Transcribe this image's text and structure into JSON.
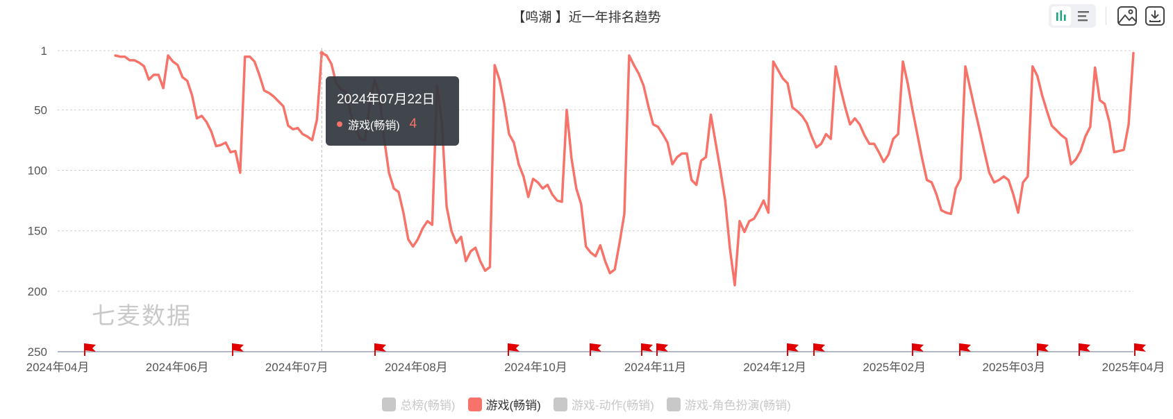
{
  "title": "【鸣潮 】近一年排名趋势",
  "watermark": "七麦数据",
  "colors": {
    "series": "#f77369",
    "grid": "#cfcfcf",
    "axis": "#9aa0b3",
    "flag": "#e00000",
    "legend_off": "#c8c8c8",
    "accent": "#1aa57e"
  },
  "toolbar": {
    "toggle": [
      {
        "icon": "bar-chart-icon",
        "active": true
      },
      {
        "icon": "list-icon",
        "active": false
      }
    ],
    "buttons": [
      {
        "icon": "image-icon"
      },
      {
        "icon": "download-icon"
      }
    ]
  },
  "tooltip": {
    "date": "2024年07月22日",
    "series": "游戏(畅销)",
    "value": "4"
  },
  "legend": [
    {
      "label": "总榜(畅销)",
      "active": false
    },
    {
      "label": "游戏(畅销)",
      "active": true
    },
    {
      "label": "游戏-动作(畅销)",
      "active": false
    },
    {
      "label": "游戏-角色扮演(畅销)",
      "active": false
    }
  ],
  "chart_data": {
    "type": "line",
    "title": "【鸣潮 】近一年排名趋势",
    "y_axis": {
      "inverse": true,
      "min": 1,
      "max": 250,
      "ticks": [
        1,
        50,
        100,
        150,
        200,
        250
      ]
    },
    "x_ticks": [
      "2024年04月",
      "2024年06月",
      "2024年07月",
      "2024年08月",
      "2024年10月",
      "2024年11月",
      "2024年12月",
      "2025年02月",
      "2025年03月",
      "2025年04月"
    ],
    "grid": true,
    "legend_position": "bottom",
    "series": [
      {
        "name": "游戏(畅销)",
        "values": [
          null,
          null,
          null,
          null,
          null,
          null,
          null,
          null,
          null,
          null,
          null,
          null,
          5,
          6,
          6,
          9,
          9,
          11,
          14,
          25,
          21,
          21,
          32,
          5,
          10,
          13,
          23,
          26,
          38,
          57,
          55,
          60,
          68,
          80,
          79,
          77,
          85,
          84,
          102,
          6,
          6,
          10,
          21,
          34,
          36,
          39,
          43,
          47,
          63,
          66,
          65,
          70,
          72,
          75,
          58,
          3,
          5,
          12,
          28,
          33,
          35,
          53,
          65,
          74,
          75,
          45,
          25,
          38,
          74,
          102,
          115,
          118,
          135,
          157,
          163,
          157,
          148,
          142,
          145,
          30,
          60,
          130,
          150,
          160,
          155,
          175,
          167,
          164,
          175,
          183,
          180,
          13,
          25,
          45,
          70,
          77,
          95,
          105,
          122,
          107,
          110,
          115,
          112,
          120,
          125,
          126,
          50,
          90,
          115,
          128,
          163,
          168,
          171,
          162,
          175,
          185,
          182,
          160,
          136,
          5,
          13,
          20,
          30,
          47,
          62,
          64,
          70,
          77,
          95,
          89,
          86,
          86,
          108,
          112,
          92,
          89,
          54,
          77,
          100,
          125,
          165,
          195,
          142,
          151,
          142,
          140,
          133,
          125,
          135,
          10,
          17,
          24,
          28,
          48,
          51,
          55,
          61,
          72,
          81,
          78,
          70,
          74,
          14,
          32,
          48,
          62,
          57,
          62,
          71,
          78,
          78,
          85,
          93,
          87,
          74,
          70,
          10,
          28,
          50,
          70,
          90,
          108,
          110,
          120,
          133,
          135,
          136,
          115,
          107,
          14,
          32,
          50,
          67,
          85,
          102,
          110,
          108,
          105,
          108,
          120,
          135,
          110,
          105,
          14,
          22,
          38,
          51,
          63,
          67,
          71,
          74,
          95,
          91,
          84,
          72,
          64,
          15,
          42,
          45,
          60,
          85,
          84,
          83,
          62,
          3
        ]
      }
    ],
    "events_flags": 16
  }
}
